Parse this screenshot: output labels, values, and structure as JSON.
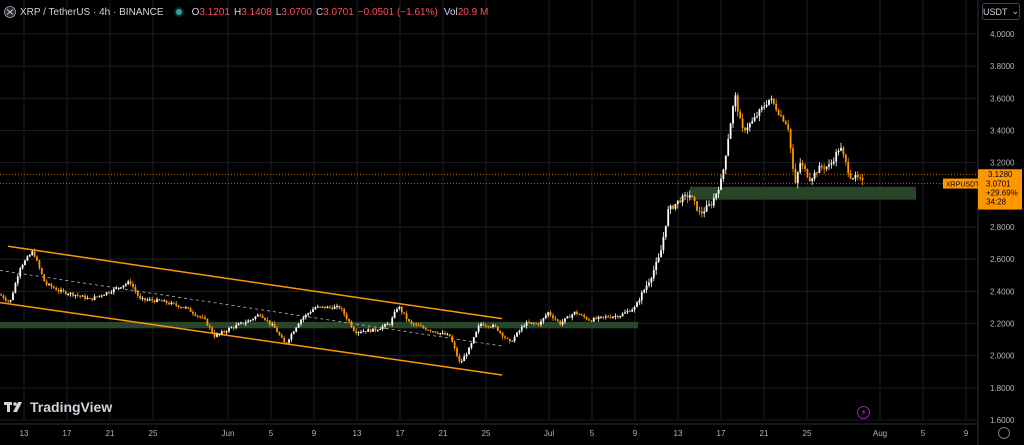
{
  "legend": {
    "symbol": "XRP / TetherUS · 4h · BINANCE",
    "open_label": "O",
    "open": "3.1201",
    "high_label": "H",
    "high": "3.1408",
    "low_label": "L",
    "low": "3.0700",
    "close_label": "C",
    "close": "3.0701",
    "change": "−0.0501 (−1.61%)",
    "vol_label": "Vol",
    "volume": "20.9 M"
  },
  "unit_selector": {
    "label": "USDT"
  },
  "watermark": {
    "text": "TradingView"
  },
  "colors": {
    "up": "#ffffff",
    "down": "#ff9800",
    "channel": "#ff9800",
    "zone": "#2e4d2e",
    "grid": "#1c1e24",
    "axis_text": "#b2b5be"
  },
  "chart_data": {
    "type": "candlestick",
    "symbol": "XRPUSDT",
    "ylim": [
      1.6,
      4.1
    ],
    "y_ticks": [
      "4.0000",
      "3.8000",
      "3.6000",
      "3.4000",
      "3.2000",
      "2.8000",
      "2.6000",
      "2.4000",
      "2.2000",
      "2.0000",
      "1.8000",
      "1.6000"
    ],
    "x_ticks": [
      "13",
      "17",
      "21",
      "25",
      "Jun",
      "5",
      "9",
      "13",
      "17",
      "21",
      "25",
      "Jul",
      "5",
      "9",
      "13",
      "17",
      "21",
      "25",
      "Aug",
      "5",
      "9"
    ],
    "price_tags": [
      {
        "label": "3.1280",
        "value": 3.128,
        "color": "#ff9800"
      },
      {
        "label": "3.0701",
        "value": 3.0701,
        "color": "#ff9800"
      }
    ],
    "last_price": {
      "symbol_label": "XRPUSDT",
      "price": "3.0701",
      "change": "+29.69%",
      "countdown": "34:28"
    },
    "path": [
      [
        0,
        2.38
      ],
      [
        10,
        2.33
      ],
      [
        20,
        2.55
      ],
      [
        33,
        2.65
      ],
      [
        45,
        2.45
      ],
      [
        60,
        2.4
      ],
      [
        75,
        2.38
      ],
      [
        90,
        2.35
      ],
      [
        110,
        2.4
      ],
      [
        130,
        2.46
      ],
      [
        140,
        2.35
      ],
      [
        160,
        2.34
      ],
      [
        185,
        2.3
      ],
      [
        205,
        2.22
      ],
      [
        215,
        2.12
      ],
      [
        230,
        2.17
      ],
      [
        250,
        2.22
      ],
      [
        260,
        2.26
      ],
      [
        275,
        2.17
      ],
      [
        285,
        2.07
      ],
      [
        300,
        2.22
      ],
      [
        315,
        2.3
      ],
      [
        340,
        2.3
      ],
      [
        355,
        2.15
      ],
      [
        375,
        2.16
      ],
      [
        390,
        2.2
      ],
      [
        398,
        2.31
      ],
      [
        410,
        2.2
      ],
      [
        430,
        2.16
      ],
      [
        450,
        2.12
      ],
      [
        460,
        1.95
      ],
      [
        470,
        2.05
      ],
      [
        480,
        2.2
      ],
      [
        495,
        2.18
      ],
      [
        510,
        2.08
      ],
      [
        525,
        2.2
      ],
      [
        540,
        2.2
      ],
      [
        548,
        2.27
      ],
      [
        560,
        2.2
      ],
      [
        575,
        2.27
      ],
      [
        590,
        2.22
      ],
      [
        605,
        2.24
      ],
      [
        620,
        2.25
      ],
      [
        635,
        2.3
      ],
      [
        650,
        2.48
      ],
      [
        660,
        2.62
      ],
      [
        668,
        2.9
      ],
      [
        680,
        2.97
      ],
      [
        690,
        3.0
      ],
      [
        700,
        2.88
      ],
      [
        712,
        2.95
      ],
      [
        722,
        3.1
      ],
      [
        728,
        3.35
      ],
      [
        735,
        3.62
      ],
      [
        742,
        3.4
      ],
      [
        752,
        3.45
      ],
      [
        760,
        3.52
      ],
      [
        770,
        3.6
      ],
      [
        780,
        3.5
      ],
      [
        788,
        3.43
      ],
      [
        795,
        3.05
      ],
      [
        800,
        3.2
      ],
      [
        810,
        3.1
      ],
      [
        820,
        3.17
      ],
      [
        830,
        3.18
      ],
      [
        840,
        3.3
      ],
      [
        850,
        3.12
      ],
      [
        858,
        3.1
      ],
      [
        864,
        3.07
      ]
    ],
    "annotations": {
      "channel_upper": [
        [
          8,
          2.68
        ],
        [
          502,
          2.23
        ]
      ],
      "channel_lower": [
        [
          0,
          2.33
        ],
        [
          502,
          1.88
        ]
      ],
      "channel_mid": [
        [
          0,
          2.53
        ],
        [
          502,
          2.06
        ]
      ],
      "support_zone_1": {
        "x": [
          0,
          638
        ],
        "y": [
          2.17,
          2.21
        ]
      },
      "support_zone_2": {
        "x": [
          690,
          916
        ],
        "y": [
          2.97,
          3.05
        ]
      }
    }
  }
}
